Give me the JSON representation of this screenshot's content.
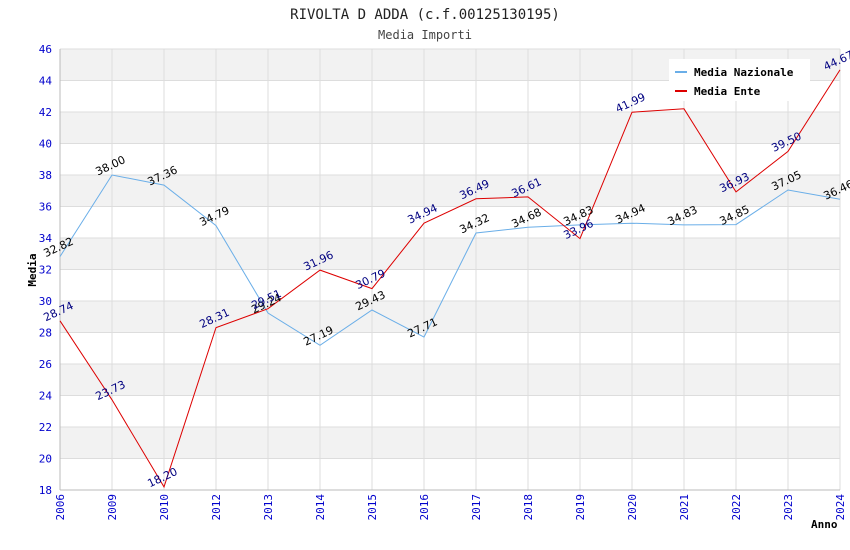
{
  "chart_data": {
    "type": "line",
    "title": "RIVOLTA D ADDA (c.f.00125130195)",
    "subtitle": "Media Importi",
    "xlabel": "Anno",
    "ylabel": "Media",
    "ylim": [
      18,
      46
    ],
    "yticks": [
      "18",
      "20",
      "22",
      "24",
      "26",
      "28",
      "30",
      "32",
      "34",
      "36",
      "38",
      "40",
      "42",
      "44",
      "46"
    ],
    "categories": [
      "2006",
      "2009",
      "2010",
      "2012",
      "2013",
      "2014",
      "2015",
      "2016",
      "2017",
      "2018",
      "2019",
      "2020",
      "2021",
      "2022",
      "2023",
      "2024"
    ],
    "legend_position": "top-right",
    "grid": true,
    "series": [
      {
        "name": "Media Nazionale",
        "color": "#6aaee8",
        "label_color": "#000000",
        "values": [
          32.82,
          38.0,
          37.36,
          34.79,
          29.24,
          27.19,
          29.43,
          27.71,
          34.32,
          34.68,
          34.83,
          34.94,
          34.83,
          34.85,
          37.05,
          36.46
        ],
        "labels": [
          "32.82",
          "38.00",
          "37.36",
          "34.79",
          "29.24",
          "27.19",
          "29.43",
          "27.71",
          "34.32",
          "34.68",
          "34.83",
          "34.94",
          "34.83",
          "34.85",
          "37.05",
          "36.46"
        ]
      },
      {
        "name": "Media Ente",
        "color": "#dd0000",
        "label_color": "#000080",
        "values": [
          28.74,
          23.73,
          18.2,
          28.31,
          29.51,
          31.96,
          30.79,
          34.94,
          36.49,
          36.61,
          33.96,
          41.99,
          42.2,
          36.93,
          39.5,
          44.67
        ],
        "labels": [
          "28.74",
          "23.73",
          "18.20",
          "28.31",
          "29.51",
          "31.96",
          "30.79",
          "34.94",
          "36.49",
          "36.61",
          "33.96",
          "41.99",
          "",
          "36.93",
          "39.50",
          "44.67"
        ]
      }
    ]
  }
}
